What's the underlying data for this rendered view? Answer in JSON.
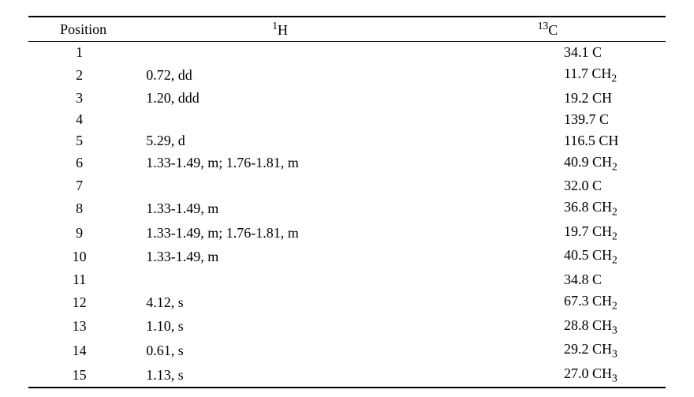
{
  "headers": {
    "position": "Position",
    "h_pre": "1",
    "h_main": "H",
    "c_pre": "13",
    "c_main": "C"
  },
  "rows": [
    {
      "pos": "1",
      "h": "",
      "c_val": "34.1",
      "c_type": "C",
      "sub": ""
    },
    {
      "pos": "2",
      "h": "0.72,  dd",
      "c_val": "11.7",
      "c_type": "CH",
      "sub": "2"
    },
    {
      "pos": "3",
      "h": "1.20,  ddd",
      "c_val": "19.2",
      "c_type": "CH",
      "sub": ""
    },
    {
      "pos": "4",
      "h": "",
      "c_val": "139.7",
      "c_type": "C",
      "sub": ""
    },
    {
      "pos": "5",
      "h": "5.29,  d",
      "c_val": "116.5",
      "c_type": "CH",
      "sub": ""
    },
    {
      "pos": "6",
      "h": "1.33-1.49,  m;  1.76-1.81,  m",
      "c_val": "40.9",
      "c_type": "CH",
      "sub": "2"
    },
    {
      "pos": "7",
      "h": "",
      "c_val": "32.0",
      "c_type": "C",
      "sub": ""
    },
    {
      "pos": "8",
      "h": "1.33-1.49,  m",
      "c_val": "36.8",
      "c_type": "CH",
      "sub": "2"
    },
    {
      "pos": "9",
      "h": "1.33-1.49,  m;  1.76-1.81,  m",
      "c_val": "19.7",
      "c_type": "CH",
      "sub": "2"
    },
    {
      "pos": "10",
      "h": "1.33-1.49,  m",
      "c_val": "40.5",
      "c_type": "CH",
      "sub": "2"
    },
    {
      "pos": "11",
      "h": "",
      "c_val": "34.8",
      "c_type": "C",
      "sub": ""
    },
    {
      "pos": "12",
      "h": "4.12,  s",
      "c_val": "67.3",
      "c_type": "CH",
      "sub": "2"
    },
    {
      "pos": "13",
      "h": "1.10,  s",
      "c_val": "28.8",
      "c_type": "CH",
      "sub": "3"
    },
    {
      "pos": "14",
      "h": "0.61,  s",
      "c_val": "29.2",
      "c_type": "CH",
      "sub": "3"
    },
    {
      "pos": "15",
      "h": "1.13,  s",
      "c_val": "27.0",
      "c_type": "CH",
      "sub": "3"
    }
  ]
}
